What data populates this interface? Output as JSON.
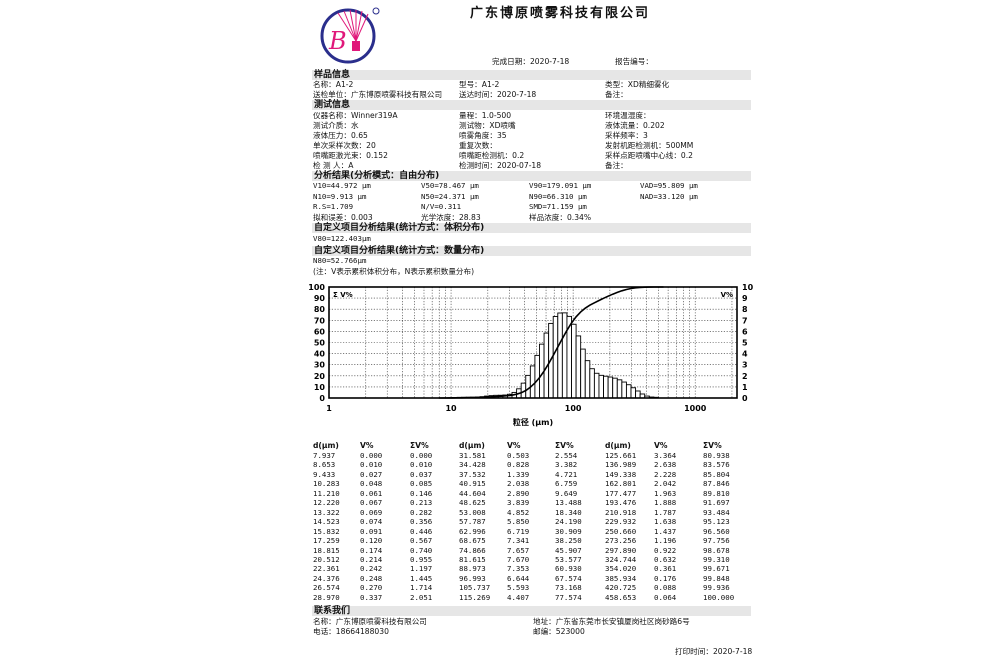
{
  "header": {
    "company": "广东博原喷雾科技有限公司",
    "logo_letter": "B",
    "logo_colors": {
      "ring": "#2a2e8c",
      "accent": "#e0187a"
    },
    "completion_date": "完成日期：2020-7-18",
    "report_no": "报告编号："
  },
  "sample": {
    "title": "样品信息",
    "name": "名称：A1-2",
    "model": "型号：A1-2",
    "type": "类型：XD精细雾化",
    "sender": "送检单位：广东博原喷雾科技有限公司",
    "send_time": "送达时间：2020-7-18",
    "remark": "备注："
  },
  "test": {
    "title": "测试信息",
    "rows": [
      [
        "仪器名称：Winner319A",
        "量程：1.0-500",
        "环境温湿度："
      ],
      [
        "测试介质：水",
        "测试物：XD喷嘴",
        "液体流量：0.202"
      ],
      [
        "液体压力：0.65",
        "喷雾角度：35",
        "采样频率：3"
      ],
      [
        "单次采样次数：20",
        "重复次数：",
        "发射机距检测机：500MM"
      ],
      [
        "喷嘴距激光束：0.152",
        "喷嘴距检测机：0.2",
        "采样点距喷嘴中心线：0.2"
      ],
      [
        "检 测 人：A",
        "检测时间：2020-07-18",
        "备注："
      ]
    ]
  },
  "analysis": {
    "title": "分析结果(分析模式：自由分布)",
    "rows": [
      [
        "V10=44.972 μm",
        "V50=78.467 μm",
        "V90=179.091 μm",
        "VAD=95.809 μm"
      ],
      [
        "N10=9.913 μm",
        "N50=24.371 μm",
        "N90=66.310 μm",
        "NAD=33.120 μm"
      ],
      [
        "R.S=1.709",
        "N/V=0.311",
        "SMD=71.159 μm",
        ""
      ],
      [
        "拟和误差：0.003",
        "光学浓度：28.83",
        "样品浓度：0.34%",
        ""
      ]
    ]
  },
  "custom_volume": {
    "title": "自定义项目分析结果(统计方式：体积分布)",
    "value": "V80=122.403μm"
  },
  "custom_number": {
    "title": "自定义项目分析结果(统计方式：数量分布)",
    "value": "N80=52.766μm"
  },
  "note": "(注：V表示累积体积分布，N表示累积数量分布)",
  "chart_data": {
    "type": "bar",
    "xlabel": "粒径 (μm)",
    "x_scale": "log",
    "xlim": [
      1,
      2200
    ],
    "x_ticks": [
      "1",
      "10",
      "100",
      "1000"
    ],
    "y_left_label": "Σ V%",
    "y_left_lim": [
      0,
      100
    ],
    "y_left_ticks": [
      "0",
      "10",
      "20",
      "30",
      "40",
      "50",
      "60",
      "70",
      "80",
      "90",
      "100"
    ],
    "y_right_label": "V%",
    "y_right_lim": [
      0,
      10
    ],
    "y_right_ticks": [
      "0",
      "1",
      "2",
      "3",
      "4",
      "5",
      "6",
      "7",
      "8",
      "9",
      "10"
    ],
    "grid": true,
    "x": [
      7.937,
      8.653,
      9.433,
      10.283,
      11.21,
      12.22,
      13.322,
      14.523,
      15.832,
      17.259,
      18.815,
      20.512,
      22.361,
      24.376,
      26.574,
      28.97,
      31.581,
      34.428,
      37.532,
      40.915,
      44.604,
      48.625,
      53.008,
      57.787,
      62.996,
      68.675,
      74.866,
      81.615,
      88.973,
      96.993,
      105.737,
      115.269,
      125.661,
      136.989,
      149.338,
      162.801,
      177.477,
      193.476,
      210.918,
      229.932,
      250.66,
      273.256,
      297.89,
      324.744,
      354.02,
      385.934,
      420.725,
      458.653
    ],
    "series": [
      {
        "name": "V%",
        "type": "bar",
        "axis": "right",
        "values": [
          0.0,
          0.01,
          0.027,
          0.048,
          0.061,
          0.067,
          0.069,
          0.074,
          0.091,
          0.12,
          0.174,
          0.214,
          0.242,
          0.248,
          0.27,
          0.337,
          0.503,
          0.828,
          1.339,
          2.038,
          2.89,
          3.839,
          4.852,
          5.85,
          6.719,
          7.341,
          7.657,
          7.67,
          7.353,
          6.644,
          5.593,
          4.407,
          3.364,
          2.638,
          2.228,
          2.042,
          1.963,
          1.888,
          1.787,
          1.638,
          1.437,
          1.196,
          0.922,
          0.632,
          0.361,
          0.176,
          0.088,
          0.064
        ]
      },
      {
        "name": "Σ V%",
        "type": "line",
        "axis": "left",
        "values": [
          0.0,
          0.01,
          0.037,
          0.085,
          0.146,
          0.213,
          0.282,
          0.356,
          0.446,
          0.567,
          0.74,
          0.955,
          1.197,
          1.445,
          1.714,
          2.051,
          2.554,
          3.382,
          4.721,
          6.759,
          9.649,
          13.488,
          18.34,
          24.19,
          30.909,
          38.25,
          45.907,
          53.577,
          60.93,
          67.574,
          73.168,
          77.574,
          80.938,
          83.576,
          85.804,
          87.846,
          89.81,
          91.697,
          93.484,
          95.123,
          96.56,
          97.756,
          98.678,
          99.31,
          99.671,
          99.848,
          99.936,
          100.0
        ]
      }
    ]
  },
  "table": {
    "headers": [
      "d(μm)",
      "V%",
      "ΣV%",
      "d(μm)",
      "V%",
      "ΣV%",
      "d(μm)",
      "V%",
      "ΣV%"
    ],
    "rows": [
      [
        "7.937",
        "0.000",
        "0.000",
        "31.581",
        "0.503",
        "2.554",
        "125.661",
        "3.364",
        "80.938"
      ],
      [
        "8.653",
        "0.010",
        "0.010",
        "34.428",
        "0.828",
        "3.382",
        "136.989",
        "2.638",
        "83.576"
      ],
      [
        "9.433",
        "0.027",
        "0.037",
        "37.532",
        "1.339",
        "4.721",
        "149.338",
        "2.228",
        "85.804"
      ],
      [
        "10.283",
        "0.048",
        "0.085",
        "40.915",
        "2.038",
        "6.759",
        "162.801",
        "2.042",
        "87.846"
      ],
      [
        "11.210",
        "0.061",
        "0.146",
        "44.604",
        "2.890",
        "9.649",
        "177.477",
        "1.963",
        "89.810"
      ],
      [
        "12.220",
        "0.067",
        "0.213",
        "48.625",
        "3.839",
        "13.488",
        "193.476",
        "1.888",
        "91.697"
      ],
      [
        "13.322",
        "0.069",
        "0.282",
        "53.008",
        "4.852",
        "18.340",
        "210.918",
        "1.787",
        "93.484"
      ],
      [
        "14.523",
        "0.074",
        "0.356",
        "57.787",
        "5.850",
        "24.190",
        "229.932",
        "1.638",
        "95.123"
      ],
      [
        "15.832",
        "0.091",
        "0.446",
        "62.996",
        "6.719",
        "30.909",
        "250.660",
        "1.437",
        "96.560"
      ],
      [
        "17.259",
        "0.120",
        "0.567",
        "68.675",
        "7.341",
        "38.250",
        "273.256",
        "1.196",
        "97.756"
      ],
      [
        "18.815",
        "0.174",
        "0.740",
        "74.866",
        "7.657",
        "45.907",
        "297.890",
        "0.922",
        "98.678"
      ],
      [
        "20.512",
        "0.214",
        "0.955",
        "81.615",
        "7.670",
        "53.577",
        "324.744",
        "0.632",
        "99.310"
      ],
      [
        "22.361",
        "0.242",
        "1.197",
        "88.973",
        "7.353",
        "60.930",
        "354.020",
        "0.361",
        "99.671"
      ],
      [
        "24.376",
        "0.248",
        "1.445",
        "96.993",
        "6.644",
        "67.574",
        "385.934",
        "0.176",
        "99.848"
      ],
      [
        "26.574",
        "0.270",
        "1.714",
        "105.737",
        "5.593",
        "73.168",
        "420.725",
        "0.088",
        "99.936"
      ],
      [
        "28.970",
        "0.337",
        "2.051",
        "115.269",
        "4.407",
        "77.574",
        "458.653",
        "0.064",
        "100.000"
      ]
    ]
  },
  "contact": {
    "title": "联系我们",
    "name": "名称：广东博原喷雾科技有限公司",
    "address": "地址：广东省东莞市长安镇厦岗社区岗砂路6号",
    "phone": "电话：18664188030",
    "postcode": "邮编：523000"
  },
  "print_time": "打印时间：2020-7-18"
}
